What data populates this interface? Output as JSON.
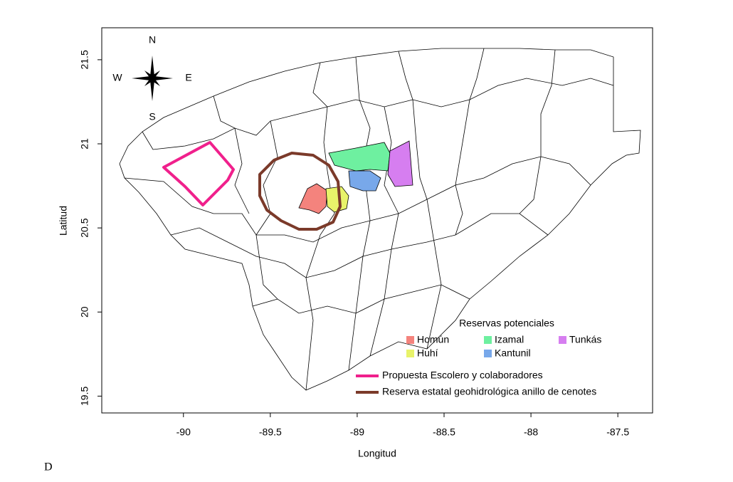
{
  "map": {
    "xlabel": "Longitud",
    "ylabel": "Latitud",
    "xlim": [
      -90.47,
      -87.3
    ],
    "ylim": [
      19.4,
      21.69
    ],
    "xticks": [
      -90,
      -89.5,
      -89,
      -88.5,
      -88,
      -87.5
    ],
    "yticks": [
      19.5,
      20,
      20.5,
      21,
      21.5
    ],
    "compass": {
      "north": "N",
      "south": "S",
      "east": "E",
      "west": "W"
    },
    "legend": {
      "title": "Reservas potenciales",
      "items": [
        {
          "name": "Homún",
          "color": "#f4837d"
        },
        {
          "name": "Izamal",
          "color": "#6ef0a0"
        },
        {
          "name": "Tunkás",
          "color": "#d67ef0"
        },
        {
          "name": "Huhí",
          "color": "#e8f36a"
        },
        {
          "name": "Kantunil",
          "color": "#78a8ea"
        }
      ],
      "lines": [
        {
          "name": "Propuesta Escolero y colaboradores",
          "color": "#f0208c"
        },
        {
          "name": "Reserva estatal geohidrológica anillo de cenotes",
          "color": "#7b3a2a"
        }
      ]
    }
  },
  "panel_label": "D"
}
